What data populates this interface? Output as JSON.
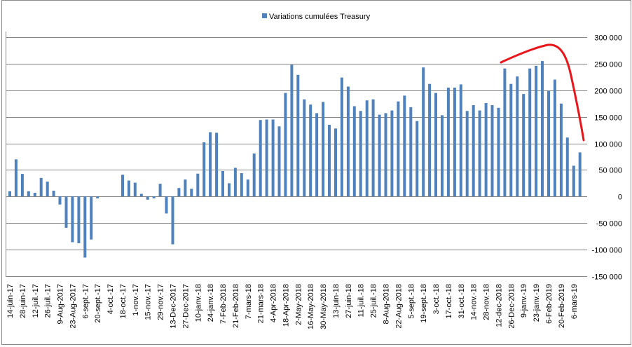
{
  "chart_data": {
    "type": "bar",
    "title": "",
    "xlabel": "",
    "ylabel": "",
    "legend": {
      "position": "top",
      "entries": [
        "Variations cumulées Treasury"
      ]
    },
    "series": [
      {
        "name": "Variations cumulées Treasury",
        "color": "#4f81bd",
        "values": [
          10000,
          70000,
          42500,
          10000,
          7000,
          35000,
          28000,
          11000,
          -15000,
          -59000,
          -86000,
          -88000,
          -115000,
          -81000,
          -3500,
          0,
          0,
          0,
          41000,
          30000,
          26000,
          5000,
          -6000,
          -3500,
          24000,
          -32000,
          -90000,
          16000,
          32000,
          14500,
          43000,
          102000,
          121000,
          120000,
          48000,
          25000,
          54000,
          44000,
          32000,
          81000,
          144000,
          145000,
          145000,
          132000,
          195000,
          248000,
          229000,
          183000,
          173000,
          157000,
          178000,
          135000,
          128000,
          224000,
          207000,
          170000,
          161000,
          181000,
          183000,
          154000,
          157000,
          162000,
          179000,
          190000,
          168000,
          142000,
          243000,
          212000,
          195000,
          153000,
          205000,
          205000,
          211000,
          161000,
          172000,
          162000,
          176000,
          172000,
          167000,
          241000,
          212000,
          226000,
          193000,
          241000,
          246000,
          255000,
          199000,
          220000,
          175000,
          111000,
          58000,
          83000
        ]
      }
    ],
    "x_tick_labels": [
      "14-juin-17",
      "28-juin-17",
      "12-juil.-17",
      "26-juil.-17",
      "9-Aug-2017",
      "23-Aug-2017",
      "6-sept.-17",
      "20-sept.-17",
      "4-oct.-17",
      "18-oct.-17",
      "1-nov.-17",
      "15-nov.-17",
      "29-nov.-17",
      "13-Dec-2017",
      "27-Dec-2017",
      "10-janv.-18",
      "24-janv.-18",
      "7-Feb-2018",
      "21-Feb-2018",
      "7-mars-18",
      "21-mars-18",
      "4-Apr-2018",
      "18-Apr-2018",
      "2-May-2018",
      "16-May-2018",
      "30-May-2018",
      "13-juin-18",
      "27-juin-18",
      "11-juil.-18",
      "25-juil.-18",
      "8-Aug-2018",
      "22-Aug-2018",
      "5-sept.-18",
      "19-sept.-18",
      "3-oct.-18",
      "17-oct.-18",
      "31-oct.-18",
      "14-nov.-18",
      "28-nov.-18",
      "12-dec-2018",
      "26-Dec-2018",
      "9-janv.-19",
      "23-janv.-19",
      "6-Feb-2019",
      "20-Feb-2019",
      "6-mars-19"
    ],
    "y_tick_labels": [
      "300 000",
      "250 000",
      "200 000",
      "150 000",
      "100 000",
      "50 000",
      "0",
      "-50 000",
      "-100 000",
      "-150 000"
    ],
    "ylim": [
      -150000,
      300000
    ],
    "y_axis_side": "right",
    "grid": true,
    "annotation": {
      "type": "freehand-curve",
      "color": "#e8161b",
      "description_shown": false
    }
  }
}
